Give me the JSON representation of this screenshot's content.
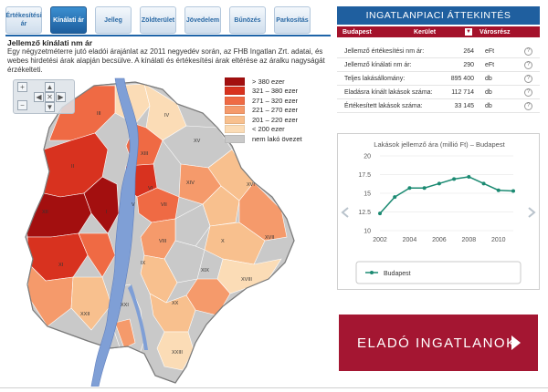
{
  "tabs": [
    {
      "label": "Értékesítési ár",
      "active": false
    },
    {
      "label": "Kínálati ár",
      "active": true
    },
    {
      "label": "Jelleg",
      "active": false
    },
    {
      "label": "Zöldterület",
      "active": false
    },
    {
      "label": "Jövedelem",
      "active": false
    },
    {
      "label": "Bűnözés",
      "active": false
    },
    {
      "label": "Parkosítás",
      "active": false
    }
  ],
  "description": {
    "title": "Jellemző kínálati nm ár",
    "text": "Egy négyzetméterre jutó eladói árajánlat az 2011 negyedév során, az FHB Ingatlan Zrt. adatai, és webes hirdetési árak alapján becsülve. A kínálati és értékesítési árak eltérése az áralku nagyságát érzékelteti."
  },
  "legend": [
    {
      "label": "> 380 ezer",
      "color": "#a30f0f"
    },
    {
      "label": "321 – 380 ezer",
      "color": "#d8321f"
    },
    {
      "label": "271 – 320 ezer",
      "color": "#ef6a44"
    },
    {
      "label": "221 – 270 ezer",
      "color": "#f59a6b"
    },
    {
      "label": "201 – 220 ezer",
      "color": "#f8c08e"
    },
    {
      "label": "< 200 ezer",
      "color": "#fbdcb6"
    },
    {
      "label": "nem lakó övezet",
      "color": "#c9c9c9"
    }
  ],
  "map_nav": {
    "up": "▲",
    "down": "▼",
    "left": "◀",
    "right": "▶",
    "plus": "+",
    "minus": "−",
    "center": "✕"
  },
  "map_labels": [
    "I",
    "II",
    "III",
    "IV",
    "V",
    "VI",
    "VII",
    "VIII",
    "IX",
    "X",
    "XI",
    "XII",
    "XIII",
    "XIV",
    "XV",
    "XVI",
    "XVII",
    "XVIII",
    "XIX",
    "XX",
    "XXI",
    "XXII",
    "XXIII"
  ],
  "panel": {
    "title": "INGATLANPIACI ÁTTEKINTÉS",
    "selectors": {
      "city": "Budapest",
      "district": "Kerület",
      "part": "Városrész"
    },
    "district_arrow": "▼",
    "stats": [
      {
        "label": "Jellemző értékesítési nm ár:",
        "value": "264",
        "unit": "eFt"
      },
      {
        "label": "Jellemző kínálati nm ár:",
        "value": "290",
        "unit": "eFt"
      },
      {
        "label": "Teljes lakásállomány:",
        "value": "895 400",
        "unit": "db"
      },
      {
        "label": "Eladásra kínált lakások száma:",
        "value": "112 714",
        "unit": "db"
      },
      {
        "label": "Értékesített lakások száma:",
        "value": "33 145",
        "unit": "db"
      }
    ],
    "help_symbol": "?"
  },
  "chart_data": {
    "type": "line",
    "title": "Lakások jellemző ára (millió Ft) – Budapest",
    "x": [
      2002,
      2003,
      2004,
      2005,
      2006,
      2007,
      2008,
      2009,
      2010,
      2011
    ],
    "series": [
      {
        "name": "Budapest",
        "values": [
          12.3,
          14.5,
          15.7,
          15.7,
          16.3,
          16.9,
          17.2,
          16.3,
          15.4,
          15.3
        ],
        "color": "#1b8a72"
      }
    ],
    "xticks": [
      "2002",
      "2004",
      "2006",
      "2008",
      "2010"
    ],
    "yticks": [
      "10",
      "12.5",
      "15",
      "17.5",
      "20"
    ],
    "ylim": [
      10,
      20
    ],
    "grid": true,
    "legend": "bottom"
  },
  "cta": {
    "label": "ELADÓ INGATLANOK"
  },
  "colors": {
    "brand_blue": "#1f5f9f",
    "brand_red": "#a4122b",
    "river": "#7f9fd6"
  }
}
